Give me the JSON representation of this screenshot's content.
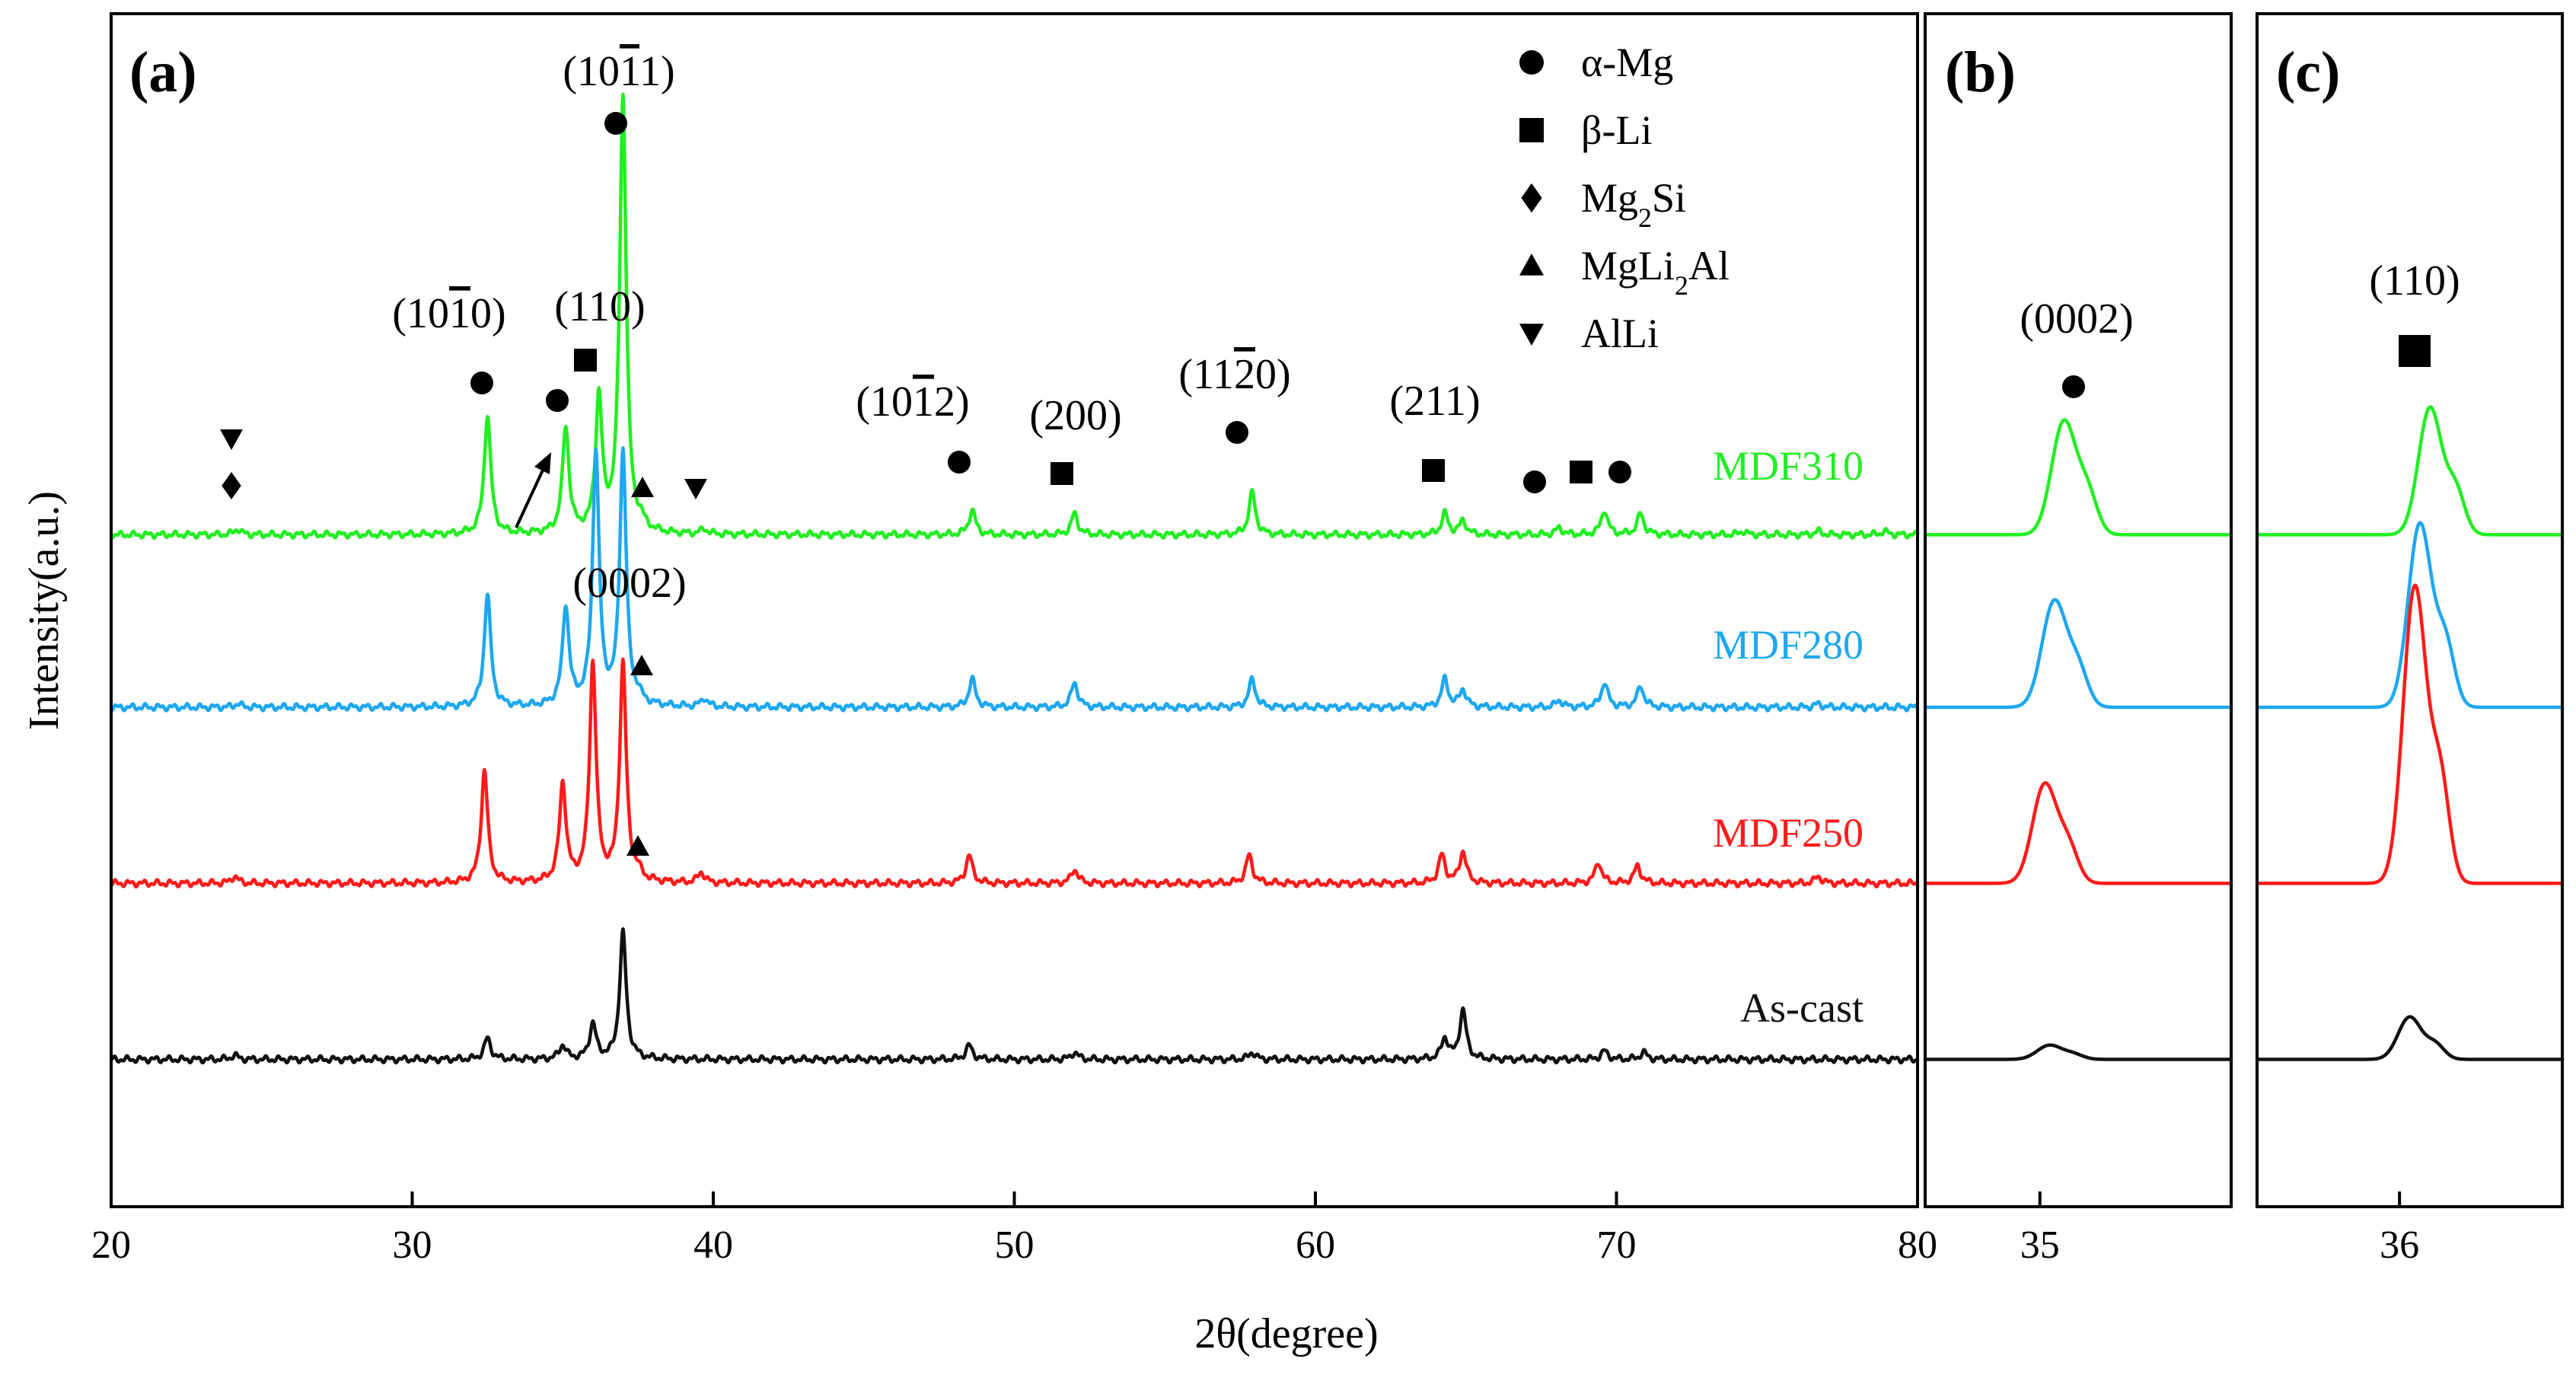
{
  "chart_data": {
    "type": "line",
    "title": "",
    "xlabel": "2θ(degree)",
    "ylabel": "Intensity(a.u.)",
    "panels": [
      {
        "label": "(a)",
        "xlim": [
          20,
          80
        ],
        "xticks": [
          20,
          30,
          40,
          50,
          60,
          70,
          80
        ],
        "tick_labels": [
          "20",
          "30",
          "40",
          "50",
          "60",
          "70",
          "80"
        ]
      },
      {
        "label": "(b)",
        "xlim": [
          33.8,
          37.0
        ],
        "xticks": [
          35
        ],
        "tick_labels": [
          "35"
        ],
        "peak_label": "(0002)"
      },
      {
        "label": "(c)",
        "xlim": [
          34.6,
          37.6
        ],
        "xticks": [
          36
        ],
        "tick_labels": [
          "36"
        ],
        "peak_label": "(110)"
      }
    ],
    "series": [
      {
        "name": "MDF310",
        "color": "#22ee22",
        "baseline": 0.765,
        "peaks": [
          [
            24.2,
            0.008
          ],
          [
            32.5,
            0.17
          ],
          [
            35.1,
            0.15
          ],
          [
            36.2,
            0.19
          ],
          [
            37.0,
            0.62
          ],
          [
            37.6,
            0.01
          ],
          [
            39.7,
            0.007
          ],
          [
            48.6,
            0.035
          ],
          [
            52.0,
            0.03
          ],
          [
            57.9,
            0.06
          ],
          [
            64.3,
            0.03
          ],
          [
            64.9,
            0.02
          ],
          [
            68.1,
            0.01
          ],
          [
            69.6,
            0.035
          ],
          [
            70.8,
            0.03
          ],
          [
            74.2,
            0.005
          ],
          [
            76.7,
            0.005
          ],
          [
            78.9,
            0.005
          ]
        ]
      },
      {
        "name": "MDF280",
        "color": "#1ea7f0",
        "baseline": 0.52,
        "peaks": [
          [
            24.2,
            0.005
          ],
          [
            32.5,
            0.16
          ],
          [
            35.1,
            0.14
          ],
          [
            36.1,
            0.36
          ],
          [
            37.0,
            0.36
          ],
          [
            37.5,
            0.01
          ],
          [
            39.7,
            0.012
          ],
          [
            48.6,
            0.04
          ],
          [
            52.0,
            0.035
          ],
          [
            57.9,
            0.04
          ],
          [
            64.3,
            0.04
          ],
          [
            64.9,
            0.025
          ],
          [
            68.1,
            0.01
          ],
          [
            69.6,
            0.035
          ],
          [
            70.8,
            0.03
          ],
          [
            76.7,
            0.005
          ]
        ]
      },
      {
        "name": "MDF250",
        "color": "#ff1a1a",
        "baseline": 0.27,
        "peaks": [
          [
            24.1,
            0.01
          ],
          [
            32.4,
            0.16
          ],
          [
            35.0,
            0.14
          ],
          [
            36.0,
            0.31
          ],
          [
            37.0,
            0.31
          ],
          [
            37.5,
            0.01
          ],
          [
            39.6,
            0.015
          ],
          [
            48.5,
            0.04
          ],
          [
            52.0,
            0.02
          ],
          [
            57.8,
            0.04
          ],
          [
            64.2,
            0.04
          ],
          [
            64.9,
            0.045
          ],
          [
            69.4,
            0.03
          ],
          [
            70.7,
            0.025
          ],
          [
            76.7,
            0.01
          ]
        ]
      },
      {
        "name": "As-cast",
        "color": "#111111",
        "baseline": 0.02,
        "peaks": [
          [
            24.1,
            0.006
          ],
          [
            32.5,
            0.03
          ],
          [
            35.0,
            0.02
          ],
          [
            36.0,
            0.05
          ],
          [
            37.0,
            0.18
          ],
          [
            48.5,
            0.02
          ],
          [
            52.0,
            0.01
          ],
          [
            57.9,
            0.01
          ],
          [
            64.3,
            0.03
          ],
          [
            64.9,
            0.07
          ],
          [
            69.6,
            0.012
          ],
          [
            70.9,
            0.01
          ]
        ]
      }
    ],
    "panel_b_peaks": [
      {
        "name": "MDF310",
        "center": 35.25,
        "height": 0.16
      },
      {
        "name": "MDF280",
        "center": 35.15,
        "height": 0.15
      },
      {
        "name": "MDF250",
        "center": 35.05,
        "height": 0.14
      },
      {
        "name": "As-cast",
        "center": 35.1,
        "height": 0.02
      }
    ],
    "panel_c_peaks": [
      {
        "name": "MDF310",
        "center": 36.3,
        "height": 0.18
      },
      {
        "name": "MDF280",
        "center": 36.2,
        "height": 0.26
      },
      {
        "name": "MDF250",
        "center": 36.15,
        "height": 0.42
      },
      {
        "name": "As-cast",
        "center": 36.1,
        "height": 0.06
      }
    ],
    "legend": [
      {
        "symbol": "circle",
        "label": "α-Mg"
      },
      {
        "symbol": "square",
        "label": "β-Li"
      },
      {
        "symbol": "diamond",
        "label": "Mg",
        "sub": "2",
        "post": "Si"
      },
      {
        "symbol": "triangle-up",
        "label": "MgLi",
        "sub": "2",
        "post": "Al"
      },
      {
        "symbol": "triangle-down",
        "label": "AlLi"
      }
    ],
    "annotations": [
      {
        "text": "(10",
        "bar": "1",
        "post": "0)",
        "x": 32.5,
        "phase": "circle"
      },
      {
        "text": "(110)",
        "x": 36.2,
        "phase": "square"
      },
      {
        "text": "(10",
        "bar": "1",
        "post": "1)",
        "x": 37.0,
        "phase": "circle"
      },
      {
        "text": "(0002)",
        "x": 35.1,
        "phase": "circle"
      },
      {
        "text": "(10",
        "bar": "1",
        "post": "2)",
        "x": 48.6,
        "phase": "circle"
      },
      {
        "text": "(200)",
        "x": 52.0,
        "phase": "square"
      },
      {
        "text": "(11",
        "bar": "2",
        "post": "0)",
        "x": 57.9,
        "phase": "circle"
      },
      {
        "text": "(211)",
        "x": 64.6,
        "phase": "square"
      }
    ]
  }
}
